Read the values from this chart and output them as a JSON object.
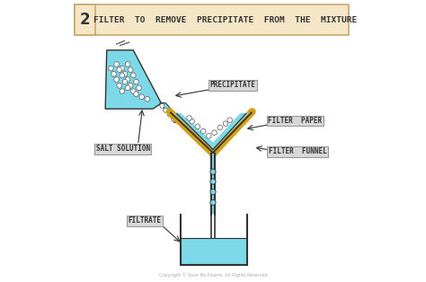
{
  "bg_color": "#ffffff",
  "title_box_color": "#f5e6c8",
  "title_border_color": "#c8a96e",
  "title_text": "FILTER  TO  REMOVE  PRECIPITATE  FROM  THE  MIXTURE",
  "step_number": "2",
  "cyan_fill": "#7dd8e8",
  "cyan_dark": "#5bbfd4",
  "gold_color": "#d4a017",
  "label_box_color": "#d8d8d8",
  "label_border_color": "#999999",
  "copyright": "Copyright © Save My Exams. All Rights Reserved"
}
